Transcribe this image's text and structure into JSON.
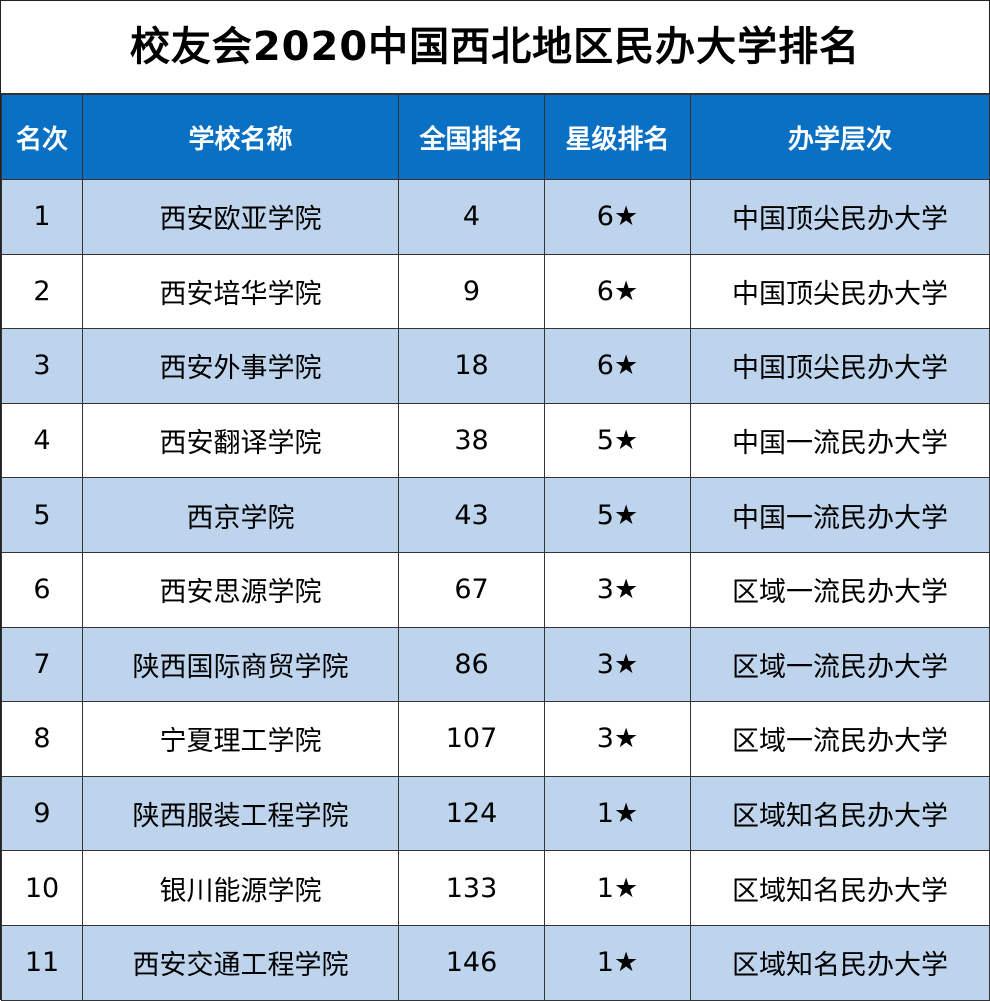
{
  "title": "校友会2020中国西北地区民办大学排名",
  "columns": [
    "名次",
    "学校名称",
    "全国排名",
    "星级排名",
    "办学层次"
  ],
  "rows": [
    [
      "1",
      "西安欧亚学院",
      "4",
      "6★",
      "中国顶尖民办大学"
    ],
    [
      "2",
      "西安培华学院",
      "9",
      "6★",
      "中国顶尖民办大学"
    ],
    [
      "3",
      "西安外事学院",
      "18",
      "6★",
      "中国顶尖民办大学"
    ],
    [
      "4",
      "西安翻译学院",
      "38",
      "5★",
      "中国一流民办大学"
    ],
    [
      "5",
      "西京学院",
      "43",
      "5★",
      "中国一流民办大学"
    ],
    [
      "6",
      "西安思源学院",
      "67",
      "3★",
      "区域一流民办大学"
    ],
    [
      "7",
      "陕西国际商贸学院",
      "86",
      "3★",
      "区域一流民办大学"
    ],
    [
      "8",
      "宁夏理工学院",
      "107",
      "3★",
      "区域一流民办大学"
    ],
    [
      "9",
      "陕西服装工程学院",
      "124",
      "1★",
      "区域知名民办大学"
    ],
    [
      "10",
      "银川能源学院",
      "133",
      "1★",
      "区域知名民办大学"
    ],
    [
      "11",
      "西安交通工程学院",
      "146",
      "1★",
      "区域知名民办大学"
    ]
  ],
  "colors": {
    "header_bg": "#0a70c4",
    "header_text": "#ffffff",
    "stripe_bg": "#bdd4ec",
    "plain_bg": "#ffffff"
  }
}
